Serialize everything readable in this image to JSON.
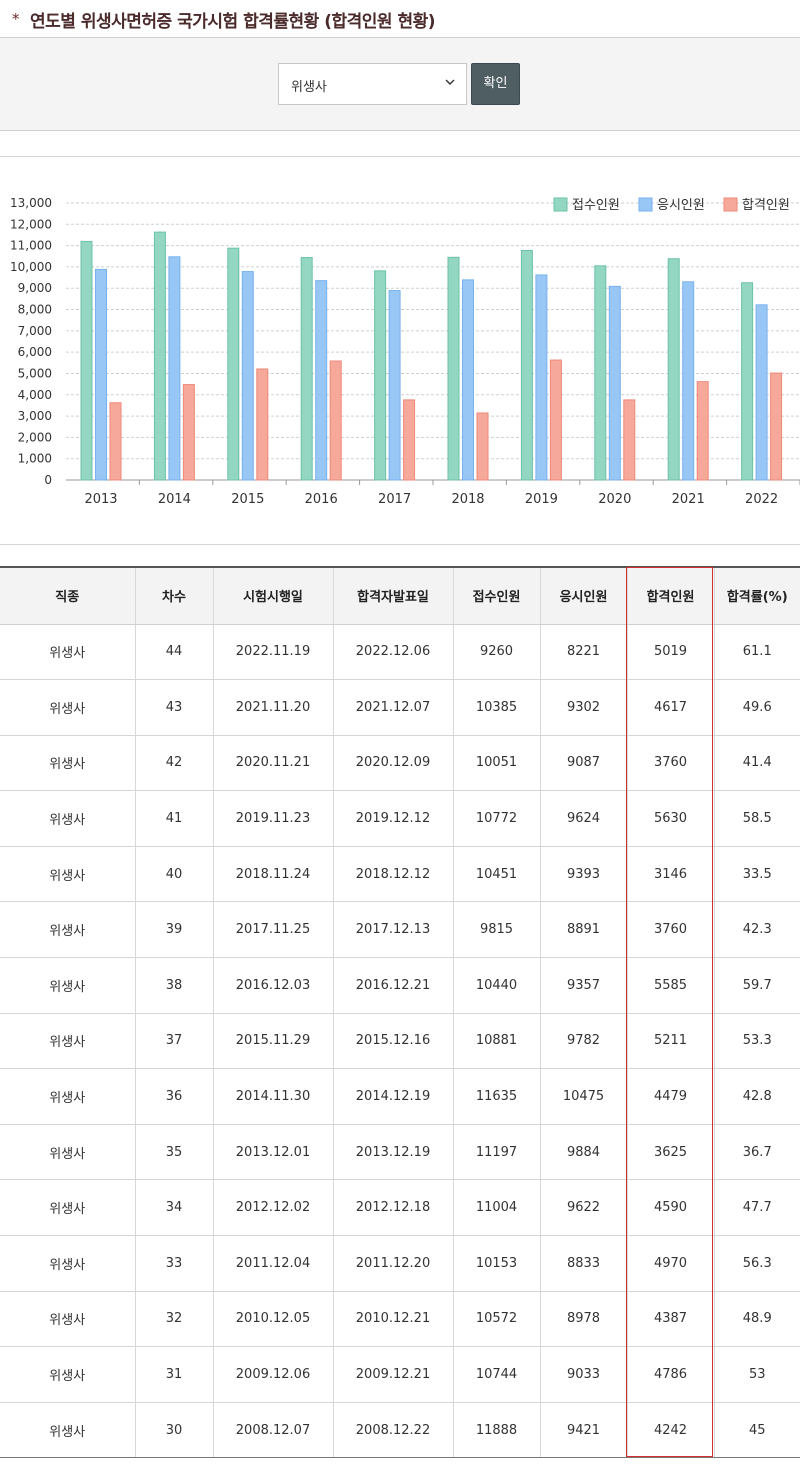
{
  "header": {
    "star": "*",
    "title": "연도별 위생사면허증 국가시험 합격률현황 (합격인원 현황)"
  },
  "filter": {
    "selected": "위생사",
    "confirm_label": "확인",
    "chevron_icon": "chevron-down-icon"
  },
  "colors": {
    "received": "#93d7c3",
    "applied": "#99c7f5",
    "passed": "#f6a89a",
    "highlight": "#d32f2f",
    "button": "#4f5e63"
  },
  "chart_data": {
    "type": "bar",
    "categories": [
      "2013",
      "2014",
      "2015",
      "2016",
      "2017",
      "2018",
      "2019",
      "2020",
      "2021",
      "2022"
    ],
    "series": [
      {
        "name": "접수인원",
        "values": [
          11197,
          11635,
          10881,
          10440,
          9815,
          10451,
          10772,
          10051,
          10385,
          9260
        ]
      },
      {
        "name": "응시인원",
        "values": [
          9884,
          10475,
          9782,
          9357,
          8891,
          9393,
          9624,
          9087,
          9302,
          8221
        ]
      },
      {
        "name": "합격인원",
        "values": [
          3625,
          4479,
          5211,
          5585,
          3760,
          3146,
          5630,
          3760,
          4617,
          5019
        ]
      }
    ],
    "yticks": [
      "0",
      "1,000",
      "2,000",
      "3,000",
      "4,000",
      "5,000",
      "6,000",
      "7,000",
      "8,000",
      "9,000",
      "10,000",
      "11,000",
      "12,000",
      "13,000"
    ],
    "ylim": [
      0,
      13000
    ],
    "legend_position": "top-right",
    "grid": true,
    "xlabel": "",
    "ylabel": ""
  },
  "table": {
    "headers": [
      "직종",
      "차수",
      "시험시행일",
      "합격자발표일",
      "접수인원",
      "응시인원",
      "합격인원",
      "합격률(%)"
    ],
    "rows": [
      [
        "위생사",
        "44",
        "2022.11.19",
        "2022.12.06",
        "9260",
        "8221",
        "5019",
        "61.1"
      ],
      [
        "위생사",
        "43",
        "2021.11.20",
        "2021.12.07",
        "10385",
        "9302",
        "4617",
        "49.6"
      ],
      [
        "위생사",
        "42",
        "2020.11.21",
        "2020.12.09",
        "10051",
        "9087",
        "3760",
        "41.4"
      ],
      [
        "위생사",
        "41",
        "2019.11.23",
        "2019.12.12",
        "10772",
        "9624",
        "5630",
        "58.5"
      ],
      [
        "위생사",
        "40",
        "2018.11.24",
        "2018.12.12",
        "10451",
        "9393",
        "3146",
        "33.5"
      ],
      [
        "위생사",
        "39",
        "2017.11.25",
        "2017.12.13",
        "9815",
        "8891",
        "3760",
        "42.3"
      ],
      [
        "위생사",
        "38",
        "2016.12.03",
        "2016.12.21",
        "10440",
        "9357",
        "5585",
        "59.7"
      ],
      [
        "위생사",
        "37",
        "2015.11.29",
        "2015.12.16",
        "10881",
        "9782",
        "5211",
        "53.3"
      ],
      [
        "위생사",
        "36",
        "2014.11.30",
        "2014.12.19",
        "11635",
        "10475",
        "4479",
        "42.8"
      ],
      [
        "위생사",
        "35",
        "2013.12.01",
        "2013.12.19",
        "11197",
        "9884",
        "3625",
        "36.7"
      ],
      [
        "위생사",
        "34",
        "2012.12.02",
        "2012.12.18",
        "11004",
        "9622",
        "4590",
        "47.7"
      ],
      [
        "위생사",
        "33",
        "2011.12.04",
        "2011.12.20",
        "10153",
        "8833",
        "4970",
        "56.3"
      ],
      [
        "위생사",
        "32",
        "2010.12.05",
        "2010.12.21",
        "10572",
        "8978",
        "4387",
        "48.9"
      ],
      [
        "위생사",
        "31",
        "2009.12.06",
        "2009.12.21",
        "10744",
        "9033",
        "4786",
        "53"
      ],
      [
        "위생사",
        "30",
        "2008.12.07",
        "2008.12.22",
        "11888",
        "9421",
        "4242",
        "45"
      ]
    ]
  }
}
